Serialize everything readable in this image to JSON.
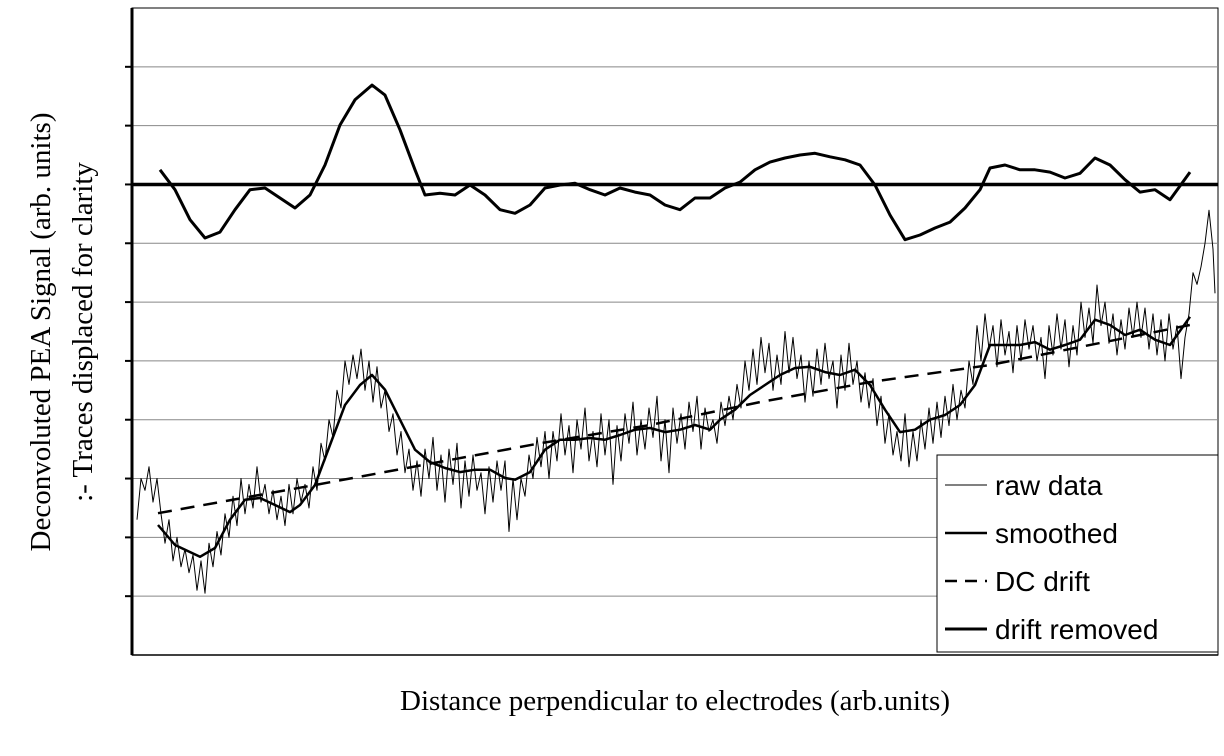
{
  "chart_data": {
    "type": "line",
    "ylabel": [
      "Deconvoluted  PEA Signal (arb. units)",
      ":- Traces displaced  for clarity"
    ],
    "xlabel": "Distance perpendicular to electrodes (arb.units)",
    "xlim": [
      0,
      1086
    ],
    "ylim": [
      0,
      1100
    ],
    "yticks": [
      100,
      200,
      300,
      400,
      500,
      600,
      700,
      800,
      900,
      1000
    ],
    "grid": true,
    "legend": "lower right",
    "baseline": 800,
    "series": [
      {
        "name": "raw data",
        "color": "#000000",
        "style": "thin",
        "x": [
          5,
          9,
          13,
          17,
          21,
          25,
          29,
          33,
          37,
          41,
          45,
          49,
          53,
          57,
          61,
          65,
          69,
          73,
          77,
          81,
          85,
          89,
          93,
          97,
          101,
          105,
          109,
          113,
          117,
          121,
          125,
          129,
          133,
          137,
          141,
          145,
          149,
          153,
          157,
          161,
          165,
          169,
          173,
          177,
          181,
          185,
          189,
          193,
          197,
          201,
          205,
          209,
          213,
          217,
          221,
          225,
          229,
          233,
          237,
          241,
          245,
          249,
          253,
          257,
          261,
          265,
          269,
          273,
          277,
          281,
          285,
          289,
          293,
          297,
          301,
          305,
          309,
          313,
          317,
          321,
          325,
          329,
          333,
          337,
          341,
          345,
          349,
          353,
          357,
          361,
          365,
          369,
          373,
          377,
          381,
          385,
          389,
          393,
          397,
          401,
          405,
          409,
          413,
          417,
          421,
          425,
          429,
          433,
          437,
          441,
          445,
          449,
          453,
          457,
          461,
          465,
          469,
          473,
          477,
          481,
          485,
          489,
          493,
          497,
          501,
          505,
          509,
          513,
          517,
          521,
          525,
          529,
          533,
          537,
          541,
          545,
          549,
          553,
          557,
          561,
          565,
          569,
          573,
          577,
          581,
          585,
          589,
          593,
          597,
          601,
          605,
          609,
          613,
          617,
          621,
          625,
          629,
          633,
          637,
          641,
          645,
          649,
          653,
          657,
          661,
          665,
          669,
          673,
          677,
          681,
          685,
          689,
          693,
          697,
          701,
          705,
          709,
          713,
          717,
          721,
          725,
          729,
          733,
          737,
          741,
          745,
          749,
          753,
          757,
          761,
          765,
          769,
          773,
          777,
          781,
          785,
          789,
          793,
          797,
          801,
          805,
          809,
          813,
          817,
          821,
          825,
          829,
          833,
          837,
          841,
          845,
          849,
          853,
          857,
          861,
          865,
          869,
          873,
          877,
          881,
          885,
          889,
          893,
          897,
          901,
          905,
          909,
          913,
          917,
          921,
          925,
          929,
          933,
          937,
          941,
          945,
          949,
          953,
          957,
          961,
          965,
          969,
          973,
          977,
          981,
          985,
          989,
          993,
          997,
          1001,
          1005,
          1009,
          1013,
          1017,
          1021,
          1025,
          1029,
          1033,
          1037,
          1041,
          1045,
          1049,
          1053,
          1057,
          1061,
          1065,
          1069,
          1073,
          1077,
          1081,
          1083
        ],
        "values": [
          230,
          300,
          280,
          320,
          260,
          300,
          240,
          190,
          230,
          160,
          200,
          150,
          180,
          140,
          170,
          110,
          160,
          105,
          190,
          150,
          210,
          170,
          240,
          200,
          270,
          220,
          300,
          240,
          290,
          250,
          320,
          260,
          290,
          240,
          280,
          230,
          270,
          220,
          290,
          240,
          300,
          260,
          290,
          250,
          320,
          280,
          360,
          330,
          400,
          370,
          450,
          420,
          500,
          460,
          510,
          470,
          520,
          450,
          500,
          430,
          490,
          420,
          450,
          380,
          410,
          340,
          380,
          310,
          350,
          280,
          330,
          270,
          350,
          300,
          370,
          280,
          340,
          260,
          350,
          290,
          360,
          250,
          330,
          270,
          340,
          280,
          310,
          240,
          320,
          260,
          330,
          280,
          330,
          210,
          300,
          230,
          300,
          270,
          340,
          300,
          370,
          320,
          380,
          300,
          380,
          330,
          410,
          340,
          390,
          310,
          400,
          350,
          420,
          330,
          380,
          320,
          410,
          340,
          400,
          290,
          390,
          330,
          410,
          360,
          430,
          340,
          400,
          350,
          420,
          370,
          440,
          330,
          400,
          310,
          420,
          360,
          410,
          350,
          430,
          380,
          440,
          350,
          420,
          380,
          400,
          360,
          430,
          390,
          440,
          400,
          460,
          420,
          500,
          450,
          520,
          460,
          540,
          480,
          530,
          450,
          510,
          460,
          550,
          480,
          540,
          470,
          510,
          430,
          500,
          440,
          520,
          460,
          530,
          470,
          500,
          420,
          510,
          450,
          530,
          460,
          500,
          430,
          480,
          420,
          470,
          390,
          440,
          360,
          410,
          340,
          380,
          330,
          410,
          320,
          380,
          330,
          400,
          350,
          420,
          360,
          430,
          370,
          440,
          390,
          460,
          400,
          450,
          420,
          500,
          460,
          560,
          500,
          580,
          520,
          560,
          490,
          570,
          510,
          550,
          480,
          560,
          500,
          570,
          520,
          560,
          500,
          540,
          470,
          560,
          510,
          580,
          520,
          570,
          490,
          560,
          510,
          600,
          540,
          590,
          530,
          629,
          560,
          600,
          530,
          580,
          510,
          570,
          520,
          590,
          540,
          600,
          540,
          590,
          520,
          580,
          510,
          570,
          500,
          580,
          520,
          560,
          470,
          540,
          580,
          650,
          630,
          660,
          700,
          756,
          690,
          615
        ]
      },
      {
        "name": "smoothed",
        "color": "#000000",
        "style": "solid",
        "x": [
          26,
          43,
          68,
          83,
          98,
          113,
          128,
          143,
          158,
          168,
          183,
          198,
          213,
          228,
          240,
          253,
          268,
          283,
          298,
          313,
          328,
          343,
          358,
          373,
          383,
          398,
          413,
          428,
          443,
          458,
          473,
          488,
          503,
          518,
          533,
          548,
          563,
          578,
          588,
          603,
          618,
          633,
          648,
          663,
          678,
          693,
          708,
          723,
          738,
          753,
          768,
          783,
          798,
          813,
          828,
          843,
          858,
          873,
          888,
          903,
          918,
          933,
          948,
          963,
          978,
          993,
          1008,
          1023,
          1038,
          1058
        ],
        "values": [
          221,
          187,
          167,
          182,
          230,
          264,
          267,
          255,
          243,
          255,
          289,
          357,
          425,
          459,
          476,
          451,
          400,
          349,
          328,
          318,
          311,
          315,
          315,
          301,
          298,
          311,
          349,
          366,
          366,
          369,
          366,
          374,
          383,
          386,
          379,
          383,
          391,
          383,
          400,
          417,
          442,
          459,
          476,
          488,
          490,
          481,
          476,
          485,
          459,
          417,
          379,
          383,
          400,
          408,
          425,
          459,
          527,
          527,
          527,
          532,
          519,
          527,
          536,
          570,
          561,
          544,
          553,
          536,
          527,
          575
        ]
      },
      {
        "name": "DC drift",
        "color": "#000000",
        "style": "dashed",
        "x": [
          26,
          183,
          408,
          518,
          628,
          738,
          858,
          1058
        ],
        "values": [
          241,
          289,
          360,
          391,
          430,
          464,
          493,
          561
        ]
      },
      {
        "name": "drift removed",
        "color": "#000000",
        "style": "thick",
        "x": [
          28,
          43,
          58,
          73,
          88,
          103,
          118,
          133,
          148,
          163,
          178,
          193,
          208,
          223,
          240,
          253,
          268,
          283,
          293,
          308,
          323,
          338,
          353,
          368,
          383,
          398,
          413,
          428,
          443,
          458,
          473,
          488,
          503,
          518,
          533,
          548,
          563,
          578,
          593,
          608,
          623,
          638,
          653,
          668,
          683,
          698,
          713,
          728,
          743,
          758,
          773,
          788,
          803,
          818,
          833,
          848,
          858,
          873,
          888,
          903,
          918,
          933,
          948,
          963,
          978,
          993,
          1008,
          1023,
          1038,
          1058
        ],
        "values": [
          825,
          791,
          740,
          709,
          719,
          757,
          791,
          794,
          777,
          760,
          782,
          833,
          901,
          944,
          969,
          952,
          893,
          825,
          782,
          785,
          782,
          799,
          782,
          757,
          751,
          765,
          794,
          799,
          802,
          791,
          782,
          794,
          787,
          782,
          765,
          757,
          777,
          777,
          794,
          804,
          825,
          838,
          845,
          850,
          853,
          847,
          842,
          833,
          799,
          748,
          706,
          714,
          726,
          736,
          760,
          791,
          828,
          833,
          825,
          825,
          821,
          811,
          819,
          845,
          833,
          808,
          787,
          791,
          774,
          821
        ]
      }
    ]
  }
}
